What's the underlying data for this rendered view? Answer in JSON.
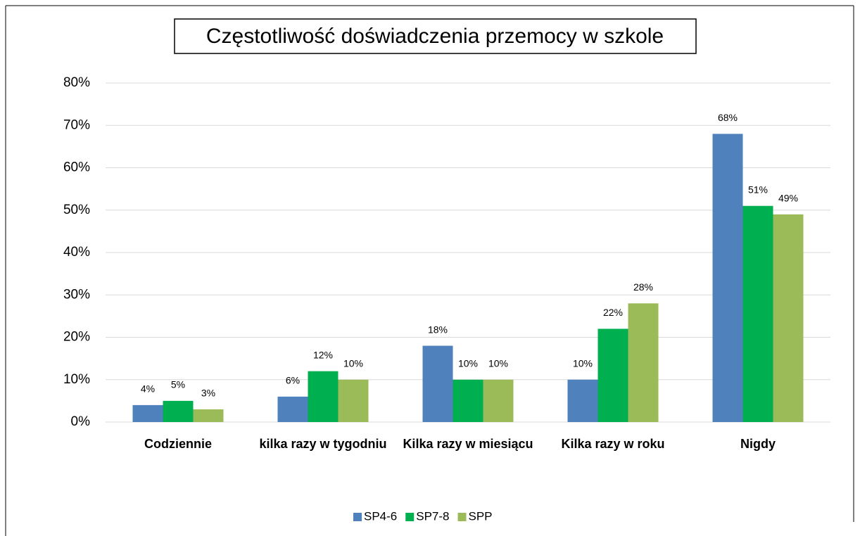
{
  "chart_data": {
    "type": "bar",
    "title": "Częstotliwość doświadczenia przemocy w szkole",
    "categories": [
      "Codziennie",
      "kilka razy w tygodniu",
      "Kilka razy w miesiącu",
      "Kilka razy w roku",
      "Nigdy"
    ],
    "series": [
      {
        "name": "SP4-6",
        "color": "#4f81bd",
        "values": [
          4,
          6,
          18,
          10,
          68
        ],
        "value_labels": [
          "4%",
          "6%",
          "18%",
          "10%",
          "68%"
        ]
      },
      {
        "name": "SP7-8",
        "color": "#00b050",
        "values": [
          5,
          12,
          10,
          22,
          51
        ],
        "value_labels": [
          "5%",
          "12%",
          "10%",
          "22%",
          "51%"
        ]
      },
      {
        "name": "SPP",
        "color": "#9bbb59",
        "values": [
          3,
          10,
          10,
          28,
          49
        ],
        "value_labels": [
          "3%",
          "10%",
          "10%",
          "28%",
          "49%"
        ]
      }
    ],
    "ylim": [
      0,
      80
    ],
    "yticks": [
      {
        "value": 0,
        "label": "0%"
      },
      {
        "value": 10,
        "label": "10%"
      },
      {
        "value": 20,
        "label": "20%"
      },
      {
        "value": 30,
        "label": "30%"
      },
      {
        "value": 40,
        "label": "40%"
      },
      {
        "value": 50,
        "label": "50%"
      },
      {
        "value": 60,
        "label": "60%"
      },
      {
        "value": 70,
        "label": "70%"
      },
      {
        "value": 80,
        "label": "80%"
      }
    ],
    "grid": true,
    "legend": "bottom"
  }
}
